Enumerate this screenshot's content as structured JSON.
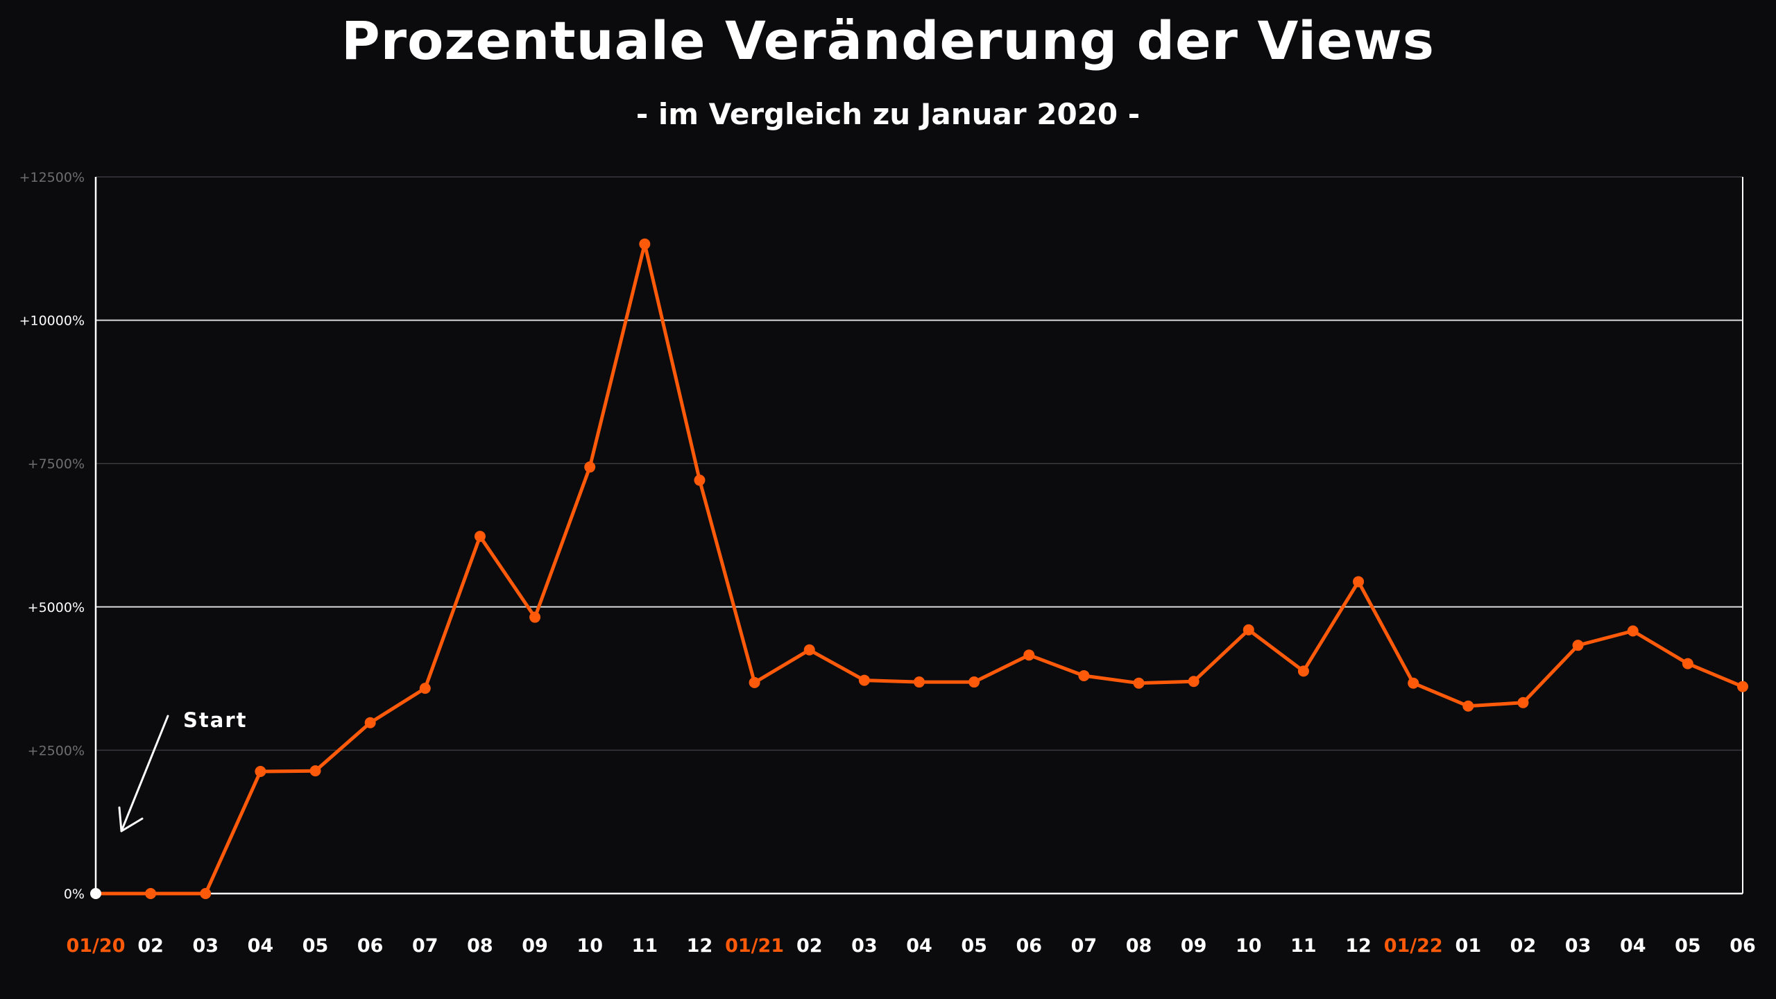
{
  "colors": {
    "background": "#0b0b0e",
    "line": "#ff5a0a",
    "axis": "#ffffff",
    "grid_major": "#d9d9d9",
    "grid_minor": "#3a3a3e",
    "tick_major": "#ffffff",
    "tick_minor": "#6e6e72",
    "year_label": "#ff5a0a",
    "month_label": "#ffffff"
  },
  "chart_data": {
    "type": "line",
    "title": "Prozentuale Veränderung der Views",
    "subtitle": "- im Vergleich zu Januar 2020 -",
    "xlabel": "",
    "ylabel": "",
    "ylim": [
      0,
      12500
    ],
    "grid": true,
    "legend": "none",
    "y_ticks": [
      {
        "value": 0,
        "label": "0%",
        "major": true
      },
      {
        "value": 2500,
        "label": "+2500%",
        "major": false
      },
      {
        "value": 5000,
        "label": "+5000%",
        "major": true
      },
      {
        "value": 7500,
        "label": "+7500%",
        "major": false
      },
      {
        "value": 10000,
        "label": "+10000%",
        "major": true
      },
      {
        "value": 12500,
        "label": "+12500%",
        "major": false
      }
    ],
    "categories": [
      "01/20",
      "02",
      "03",
      "04",
      "05",
      "06",
      "07",
      "08",
      "09",
      "10",
      "11",
      "12",
      "01/21",
      "02",
      "03",
      "04",
      "05",
      "06",
      "07",
      "08",
      "09",
      "10",
      "11",
      "12",
      "01/22",
      "01",
      "02",
      "03",
      "04",
      "05",
      "06"
    ],
    "year_markers": [
      "01/20",
      "01/21",
      "01/22"
    ],
    "series": [
      {
        "values": [
          0,
          0,
          0,
          2130,
          2140,
          2980,
          3580,
          6230,
          4820,
          7440,
          11330,
          7210,
          3680,
          4250,
          3720,
          3690,
          3690,
          4160,
          3800,
          3670,
          3700,
          4600,
          3880,
          5440,
          3670,
          3270,
          3330,
          4330,
          4580,
          4010,
          3610
        ]
      }
    ],
    "annotations": [
      {
        "text": "Start",
        "target_category": "01/20"
      }
    ]
  }
}
